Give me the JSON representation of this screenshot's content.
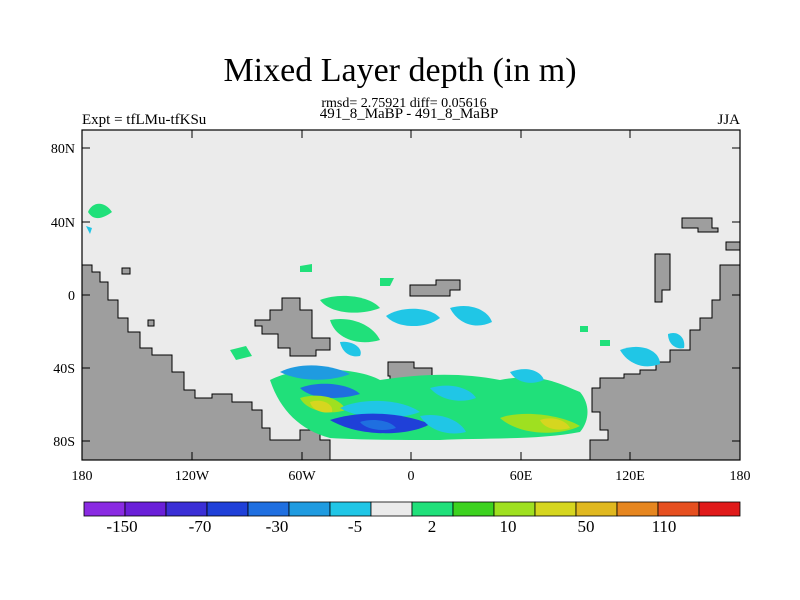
{
  "title": "Mixed Layer depth (in m)",
  "stats": "rmsd= 2.75921 diff= 0.05616",
  "subtitle": "491_8_MaBP - 491_8_MaBP",
  "expt_label": "Expt = tfLMu-tfKSu",
  "season": "JJA",
  "lat_labels": [
    "80N",
    "40N",
    "0",
    "40S",
    "80S"
  ],
  "lon_labels": [
    "180",
    "120W",
    "60W",
    "0",
    "60E",
    "120E",
    "180"
  ],
  "colorbar": {
    "colors": [
      "#8a2be2",
      "#6a1fd8",
      "#3b2fd6",
      "#1f40d8",
      "#1f6fe0",
      "#1f9be0",
      "#20c6e6",
      "#ebebeb",
      "#20e07a",
      "#3dd21f",
      "#9fe020",
      "#d6d61f",
      "#e0b81f",
      "#e6861f",
      "#e64f1f",
      "#e01a1a"
    ],
    "labels": [
      "-150",
      "-70",
      "-30",
      "-5",
      "2",
      "10",
      "50",
      "110"
    ]
  },
  "colors": {
    "ocean": "#ebebeb",
    "land": "#9e9e9e"
  }
}
